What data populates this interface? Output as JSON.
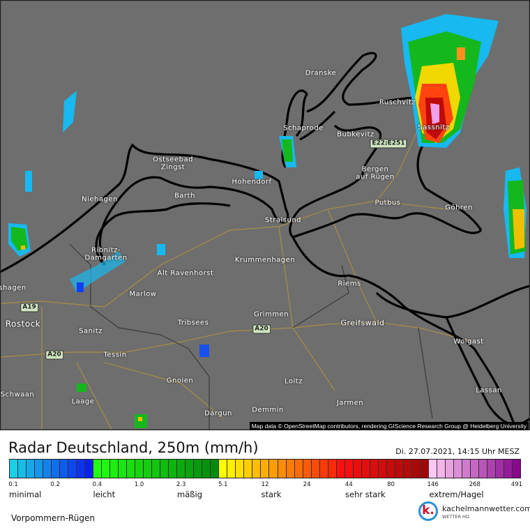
{
  "map": {
    "attribution": "Map data © OpenStreetMap contributors, rendering GIScience Research Group @ Heidelberg University",
    "places": [
      "Dranske",
      "Ruschvitz",
      "Sassnitz",
      "Schaprode",
      "Bubkevitz",
      "Ostseebad",
      "Zingst",
      "Bergen",
      "auf Rügen",
      "Hohendorf",
      "Niehagen",
      "Barth",
      "Putbus",
      "Göhren",
      "Stralsund",
      "Ribnitz-",
      "Damgarten",
      "Krummenhagen",
      "Alt Ravenhorst",
      "Riems",
      "shagen",
      "Marlow",
      "Grimmen",
      "Rostock",
      "Tribsees",
      "Greifswald",
      "Sanitz",
      "Wolgast",
      "Tessin",
      "Gnoien",
      "Loitz",
      "Lassan",
      "Schwaan",
      "Laage",
      "Jarmen",
      "Dargun",
      "Demmin"
    ],
    "road_badges": [
      "E22;E251",
      "A19",
      "A20",
      "A20"
    ],
    "background_color": "#6e6e6e"
  },
  "legend": {
    "title": "Radar Deutschland, 250m (mm/h)",
    "datetime": "Di. 27.07.2021, 14:15 Uhr MESZ",
    "ticks": [
      "0.1",
      "0.2",
      "0.4",
      "1.0",
      "2.3",
      "5.1",
      "12",
      "24",
      "44",
      "80",
      "146",
      "268",
      "491"
    ],
    "categories": [
      "minimal",
      "leicht",
      "mäßig",
      "stark",
      "sehr stark",
      "extrem/Hagel"
    ],
    "region": "Vorpommern-Rügen",
    "segments": [
      {
        "from": "#1ad0e8",
        "to": "#0a20f0",
        "count": 10
      },
      {
        "from": "#20ff10",
        "to": "#048a0c",
        "count": 15
      },
      {
        "from": "#ffff00",
        "to": "#ff2a0a",
        "count": 14
      },
      {
        "from": "#ff1010",
        "to": "#a00808",
        "count": 11
      },
      {
        "from": "#ffc8f4",
        "to": "#8a0890",
        "count": 11
      }
    ]
  },
  "brand": {
    "name": "kachelmannwetter.com",
    "sub": "WETTER HD",
    "mark": "k."
  }
}
